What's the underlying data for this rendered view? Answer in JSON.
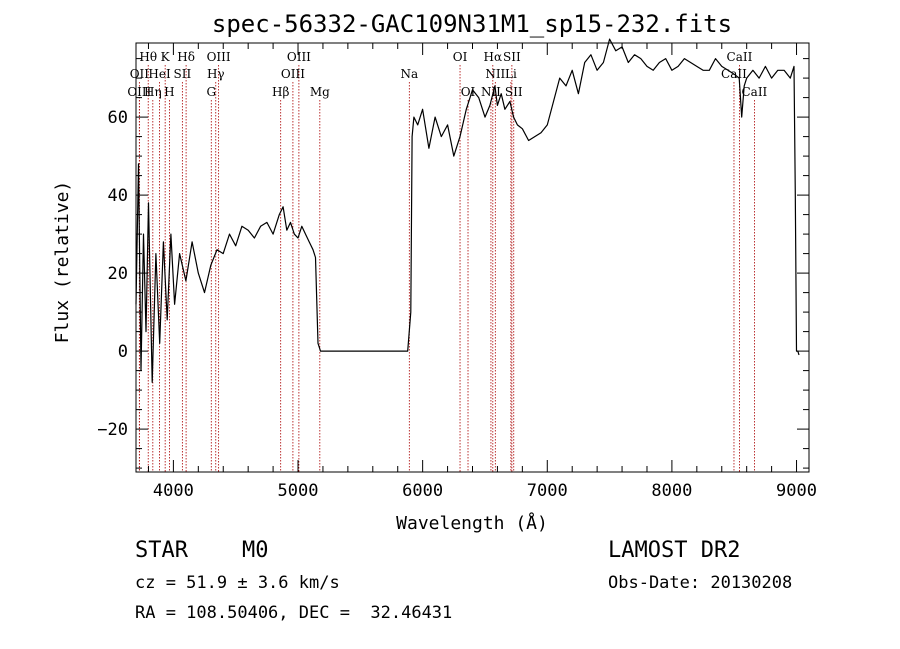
{
  "chart_data": {
    "type": "line",
    "title": "spec-56332-GAC109N31M1_sp15-232.fits",
    "xlabel": "Wavelength (Å)",
    "ylabel": "Flux (relative)",
    "xlim": [
      3700,
      9100
    ],
    "ylim": [
      -31,
      79
    ],
    "xticks": [
      4000,
      5000,
      6000,
      7000,
      8000,
      9000
    ],
    "xticklabels": [
      "4000",
      "5000",
      "6000",
      "7000",
      "8000",
      "9000"
    ],
    "yticks": [
      -20,
      0,
      20,
      40,
      60
    ],
    "yticklabels": [
      "−20",
      "0",
      "20",
      "40",
      "60"
    ],
    "grid": false,
    "line_color": "#000000",
    "marker_color": "#aa0000",
    "series": [
      {
        "x": [
          3700,
          3720,
          3740,
          3760,
          3780,
          3800,
          3830,
          3860,
          3890,
          3920,
          3950,
          3980,
          4010,
          4050,
          4100,
          4150,
          4200,
          4250,
          4300,
          4350,
          4400,
          4450,
          4500,
          4550,
          4600,
          4650,
          4700,
          4750,
          4800,
          4850,
          4880,
          4910,
          4940,
          4970,
          5000,
          5030,
          5060,
          5090,
          5120,
          5140,
          5160,
          5180,
          5300,
          5600,
          5880,
          5905,
          5915,
          5930,
          5960,
          6000,
          6050,
          6100,
          6150,
          6200,
          6250,
          6300,
          6350,
          6400,
          6450,
          6500,
          6540,
          6580,
          6600,
          6630,
          6660,
          6700,
          6730,
          6760,
          6800,
          6850,
          6900,
          6950,
          7000,
          7050,
          7100,
          7150,
          7200,
          7250,
          7300,
          7350,
          7400,
          7450,
          7500,
          7550,
          7600,
          7650,
          7700,
          7750,
          7800,
          7850,
          7900,
          7950,
          8000,
          8050,
          8100,
          8150,
          8200,
          8250,
          8300,
          8350,
          8400,
          8450,
          8500,
          8540,
          8560,
          8580,
          8600,
          8650,
          8700,
          8750,
          8800,
          8850,
          8900,
          8950,
          8980,
          8990,
          9000,
          9010,
          9020
        ],
        "y": [
          12,
          48,
          -5,
          30,
          5,
          38,
          -8,
          25,
          2,
          28,
          8,
          30,
          12,
          25,
          18,
          28,
          20,
          15,
          22,
          26,
          25,
          30,
          27,
          32,
          31,
          29,
          32,
          33,
          30,
          35,
          37,
          31,
          33,
          30,
          29,
          32,
          30,
          28,
          26,
          24,
          2,
          0,
          0,
          0,
          0,
          10,
          55,
          60,
          58,
          62,
          52,
          60,
          55,
          58,
          50,
          55,
          62,
          67,
          65,
          60,
          63,
          68,
          63,
          66,
          62,
          64,
          60,
          58,
          57,
          54,
          55,
          56,
          58,
          64,
          70,
          68,
          72,
          66,
          74,
          76,
          72,
          74,
          80,
          77,
          78,
          74,
          76,
          75,
          73,
          72,
          74,
          75,
          72,
          73,
          75,
          74,
          73,
          72,
          72,
          75,
          73,
          72,
          71,
          70,
          60,
          68,
          70,
          72,
          70,
          73,
          70,
          72,
          72,
          70,
          73,
          40,
          0,
          0,
          -1
        ]
      }
    ],
    "lines": [
      {
        "label": "Hθ",
        "x": 3798,
        "row": 0
      },
      {
        "label": "K",
        "x": 3934,
        "row": 0
      },
      {
        "label": "Hδ",
        "x": 4102,
        "row": 0
      },
      {
        "label": "OIII",
        "x": 4363,
        "row": 0
      },
      {
        "label": "OIII",
        "x": 5007,
        "row": 0
      },
      {
        "label": "OI",
        "x": 6300,
        "row": 0
      },
      {
        "label": "Hα",
        "x": 6563,
        "row": 0
      },
      {
        "label": "SII",
        "x": 6716,
        "row": 0
      },
      {
        "label": "CaII",
        "x": 8542,
        "row": 0
      },
      {
        "label": "OII",
        "x": 3727,
        "row": 1
      },
      {
        "label": "HeI",
        "x": 3889,
        "row": 1
      },
      {
        "label": "SII",
        "x": 4072,
        "row": 1
      },
      {
        "label": "Hγ",
        "x": 4340,
        "row": 1
      },
      {
        "label": "OIII",
        "x": 4959,
        "row": 1
      },
      {
        "label": "Na",
        "x": 5893,
        "row": 1
      },
      {
        "label": "NII",
        "x": 6583,
        "row": 1
      },
      {
        "label": "Li",
        "x": 6708,
        "row": 1
      },
      {
        "label": "CaII",
        "x": 8498,
        "row": 1
      },
      {
        "label": "OIII",
        "x": 3727,
        "row": 2
      },
      {
        "label": "Hη",
        "x": 3835,
        "row": 2
      },
      {
        "label": "H",
        "x": 3968,
        "row": 2
      },
      {
        "label": "G",
        "x": 4304,
        "row": 2
      },
      {
        "label": "Hβ",
        "x": 4861,
        "row": 2
      },
      {
        "label": "Mg",
        "x": 5175,
        "row": 2
      },
      {
        "label": "OI",
        "x": 6364,
        "row": 2
      },
      {
        "label": "NII",
        "x": 6548,
        "row": 2
      },
      {
        "label": "SII",
        "x": 6731,
        "row": 2
      },
      {
        "label": "CaII",
        "x": 8662,
        "row": 2
      }
    ]
  },
  "info": {
    "object_class": "STAR",
    "subclass": "M0",
    "survey": "LAMOST DR2",
    "redshift": "cz = 51.9 ± 3.6 km/s",
    "obs_date": "Obs-Date: 20130208",
    "coordinates": "RA = 108.50406, DEC =  32.46431"
  }
}
